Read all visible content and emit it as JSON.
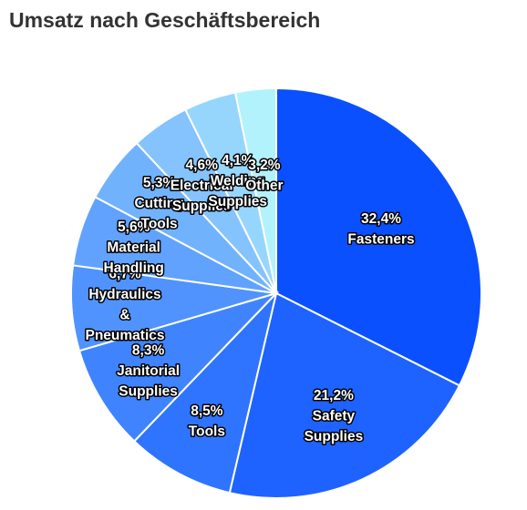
{
  "chart_data": {
    "type": "pie",
    "title": "Umsatz nach Geschäftsbereich",
    "slices": [
      {
        "label": "Fasteners",
        "value": 32.4,
        "display": "32,4%",
        "color": "#0a50ff"
      },
      {
        "label": "Safety Supplies",
        "value": 21.2,
        "display": "21,2%",
        "color": "#1e63ff"
      },
      {
        "label": "Tools",
        "value": 8.5,
        "display": "8,5%",
        "color": "#2f74ff"
      },
      {
        "label": "Janitorial Supplies",
        "value": 8.3,
        "display": "8,3%",
        "color": "#3f84fe"
      },
      {
        "label": "Hydraulics & Pneumatics",
        "value": 6.7,
        "display": "6,7%",
        "color": "#5093fe"
      },
      {
        "label": "Material Handling",
        "value": 5.6,
        "display": "5,6%",
        "color": "#60a2fe"
      },
      {
        "label": "Cutting Tools",
        "value": 5.3,
        "display": "5,3%",
        "color": "#71b2fd"
      },
      {
        "label": "Electrical Supplies",
        "value": 4.6,
        "display": "4,6%",
        "color": "#84c3fd"
      },
      {
        "label": "Welding Supplies",
        "value": 4.1,
        "display": "4,1%",
        "color": "#96d6fd"
      },
      {
        "label": "Other",
        "value": 3.2,
        "display": "3,2%",
        "color": "#b2f2fc"
      }
    ],
    "start_angle": "12 o'clock",
    "direction": "clockwise",
    "legend": "none"
  }
}
